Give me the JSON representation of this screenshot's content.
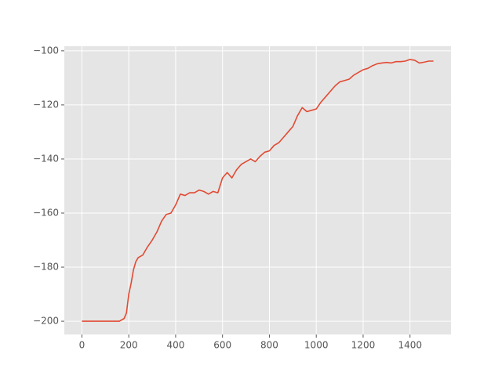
{
  "chart_data": {
    "type": "line",
    "x": [
      0,
      20,
      40,
      60,
      80,
      100,
      120,
      140,
      160,
      180,
      190,
      200,
      210,
      220,
      230,
      240,
      260,
      280,
      300,
      320,
      340,
      360,
      380,
      400,
      420,
      440,
      460,
      480,
      500,
      520,
      540,
      560,
      580,
      600,
      620,
      640,
      660,
      680,
      700,
      720,
      740,
      760,
      780,
      800,
      820,
      840,
      860,
      880,
      900,
      920,
      940,
      960,
      980,
      1000,
      1020,
      1040,
      1060,
      1080,
      1100,
      1120,
      1140,
      1160,
      1180,
      1200,
      1220,
      1240,
      1260,
      1280,
      1300,
      1320,
      1340,
      1360,
      1380,
      1400,
      1420,
      1440,
      1460,
      1480,
      1500
    ],
    "series": [
      {
        "color": "#e24a33",
        "values": [
          -200,
          -200,
          -200,
          -200,
          -200,
          -200,
          -200,
          -200,
          -200,
          -199,
          -197,
          -190,
          -186,
          -181,
          -178,
          -176.5,
          -175.5,
          -172.5,
          -170,
          -167,
          -163,
          -160.5,
          -160,
          -157,
          -153,
          -153.5,
          -152.5,
          -152.5,
          -151.5,
          -152,
          -153,
          -152,
          -152.5,
          -147,
          -145,
          -147,
          -144,
          -142,
          -141,
          -140,
          -141,
          -139,
          -137.5,
          -137,
          -135,
          -134,
          -132,
          -130,
          -128,
          -124,
          -121,
          -122.5,
          -122,
          -121.5,
          -119,
          -117,
          -115,
          -113,
          -111.5,
          -111,
          -110.5,
          -109,
          -108,
          -107,
          -106.5,
          -105.5,
          -104.8,
          -104.5,
          -104.3,
          -104.5,
          -104,
          -104,
          -103.8,
          -103.2,
          -103.5,
          -104.5,
          -104.2,
          -103.8,
          -103.8
        ]
      }
    ],
    "xlim": [
      -75,
      1575
    ],
    "xticks": [
      0,
      200,
      400,
      600,
      800,
      1000,
      1200,
      1400
    ],
    "ylim": [
      -204.9,
      -98.3
    ],
    "yticks": [
      {
        "value": -200,
        "label": "−200"
      },
      {
        "value": -180,
        "label": "−180"
      },
      {
        "value": -160,
        "label": "−160"
      },
      {
        "value": -140,
        "label": "−140"
      },
      {
        "value": -120,
        "label": "−120"
      },
      {
        "value": -100,
        "label": "−100"
      }
    ],
    "grid": true
  }
}
